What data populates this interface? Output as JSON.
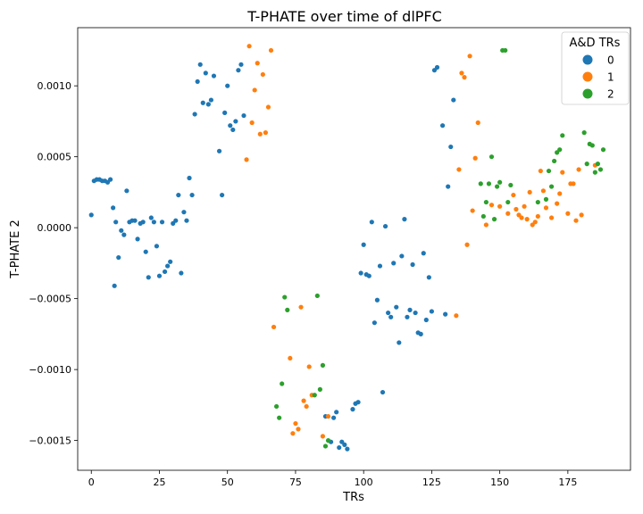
{
  "chart_data": {
    "type": "scatter",
    "title": "T-PHATE over time of dlPFC",
    "xlabel": "TRs",
    "ylabel": "T-PHATE 2",
    "xlim": [
      -5,
      198
    ],
    "ylim": [
      -0.00171,
      0.00141
    ],
    "x_ticks": [
      0,
      25,
      50,
      75,
      100,
      125,
      150,
      175
    ],
    "x_tick_labels": [
      "0",
      "25",
      "50",
      "75",
      "100",
      "125",
      "150",
      "175"
    ],
    "y_ticks": [
      -0.0015,
      -0.001,
      -0.0005,
      0,
      0.0005,
      0.001
    ],
    "y_tick_labels": [
      "−0.0015",
      "−0.0010",
      "−0.0005",
      "0.0000",
      "0.0005",
      "0.0010"
    ],
    "grid": false,
    "legend": {
      "title": "A&D TRs",
      "placement": "top-right"
    },
    "series": [
      {
        "name": "0",
        "color": "#1f77b4",
        "points": [
          [
            0,
            9e-05
          ],
          [
            1,
            0.00033
          ],
          [
            2,
            0.00034
          ],
          [
            3,
            0.00034
          ],
          [
            4,
            0.00033
          ],
          [
            5,
            0.00033
          ],
          [
            6,
            0.00032
          ],
          [
            7,
            0.00034
          ],
          [
            8,
            0.00014
          ],
          [
            8.5,
            -0.00041
          ],
          [
            9,
            4e-05
          ],
          [
            10,
            -0.00021
          ],
          [
            11,
            -2e-05
          ],
          [
            12,
            -5e-05
          ],
          [
            13,
            0.00026
          ],
          [
            14,
            4e-05
          ],
          [
            15,
            5e-05
          ],
          [
            16,
            5e-05
          ],
          [
            17,
            -8e-05
          ],
          [
            18,
            3e-05
          ],
          [
            19,
            4e-05
          ],
          [
            20,
            -0.00017
          ],
          [
            21,
            -0.00035
          ],
          [
            22,
            7e-05
          ],
          [
            23,
            4e-05
          ],
          [
            24,
            -0.00013
          ],
          [
            25,
            -0.00034
          ],
          [
            26,
            4e-05
          ],
          [
            27,
            -0.00031
          ],
          [
            28,
            -0.00027
          ],
          [
            29,
            -0.00024
          ],
          [
            30,
            3e-05
          ],
          [
            31,
            5e-05
          ],
          [
            32,
            0.00023
          ],
          [
            33,
            -0.00032
          ],
          [
            34,
            0.00011
          ],
          [
            35,
            5e-05
          ],
          [
            36,
            0.00035
          ],
          [
            37,
            0.00023
          ],
          [
            38,
            0.0008
          ],
          [
            39,
            0.00103
          ],
          [
            40,
            0.00115
          ],
          [
            41,
            0.00088
          ],
          [
            42,
            0.00109
          ],
          [
            43,
            0.00087
          ],
          [
            44,
            0.0009
          ],
          [
            45,
            0.00107
          ],
          [
            47,
            0.00054
          ],
          [
            48,
            0.00023
          ],
          [
            49,
            0.00081
          ],
          [
            50,
            0.001
          ],
          [
            51,
            0.00072
          ],
          [
            52,
            0.00069
          ],
          [
            53,
            0.00075
          ],
          [
            54,
            0.00111
          ],
          [
            55,
            0.00115
          ],
          [
            56,
            0.00079
          ],
          [
            86,
            -0.00133
          ],
          [
            88,
            -0.00151
          ],
          [
            89,
            -0.00134
          ],
          [
            90,
            -0.0013
          ],
          [
            91,
            -0.00155
          ],
          [
            92,
            -0.00151
          ],
          [
            93,
            -0.00153
          ],
          [
            94,
            -0.00156
          ],
          [
            96,
            -0.00128
          ],
          [
            97,
            -0.00124
          ],
          [
            98,
            -0.00123
          ],
          [
            99,
            -0.00032
          ],
          [
            100,
            -0.00012
          ],
          [
            101,
            -0.00033
          ],
          [
            102,
            -0.00034
          ],
          [
            103,
            4e-05
          ],
          [
            104,
            -0.00067
          ],
          [
            105,
            -0.00051
          ],
          [
            106,
            -0.00027
          ],
          [
            107,
            -0.00116
          ],
          [
            108,
            1e-05
          ],
          [
            109,
            -0.0006
          ],
          [
            110,
            -0.00063
          ],
          [
            111,
            -0.00025
          ],
          [
            112,
            -0.00056
          ],
          [
            113,
            -0.00081
          ],
          [
            114,
            -0.0002
          ],
          [
            115,
            6e-05
          ],
          [
            116,
            -0.00063
          ],
          [
            117,
            -0.00058
          ],
          [
            118,
            -0.00026
          ],
          [
            119,
            -0.0006
          ],
          [
            120,
            -0.00074
          ],
          [
            121,
            -0.00075
          ],
          [
            122,
            -0.00018
          ],
          [
            123,
            -0.00065
          ],
          [
            124,
            -0.00035
          ],
          [
            125,
            -0.00059
          ],
          [
            126,
            0.00111
          ],
          [
            127,
            0.00113
          ],
          [
            129,
            0.00072
          ],
          [
            130,
            -0.00061
          ],
          [
            131,
            0.00029
          ],
          [
            132,
            0.00057
          ],
          [
            133,
            0.0009
          ]
        ]
      },
      {
        "name": "1",
        "color": "#ff7f0e",
        "points": [
          [
            57,
            0.00048
          ],
          [
            58,
            0.00128
          ],
          [
            59,
            0.00074
          ],
          [
            60,
            0.00097
          ],
          [
            61,
            0.00116
          ],
          [
            62,
            0.00066
          ],
          [
            63,
            0.00108
          ],
          [
            64,
            0.00067
          ],
          [
            65,
            0.00085
          ],
          [
            66,
            0.00125
          ],
          [
            67,
            -0.0007
          ],
          [
            73,
            -0.00092
          ],
          [
            74,
            -0.00145
          ],
          [
            75,
            -0.00138
          ],
          [
            76,
            -0.00142
          ],
          [
            77,
            -0.00056
          ],
          [
            78,
            -0.00122
          ],
          [
            79,
            -0.00126
          ],
          [
            80,
            -0.00098
          ],
          [
            81,
            -0.00118
          ],
          [
            85,
            -0.00147
          ],
          [
            87,
            -0.00133
          ],
          [
            134,
            -0.00062
          ],
          [
            135,
            0.00041
          ],
          [
            136,
            0.00109
          ],
          [
            137,
            0.00106
          ],
          [
            138,
            -0.00012
          ],
          [
            139,
            0.00121
          ],
          [
            140,
            0.00012
          ],
          [
            141,
            0.00049
          ],
          [
            142,
            0.00074
          ],
          [
            145,
            2e-05
          ],
          [
            147,
            0.00016
          ],
          [
            150,
            0.00015
          ],
          [
            153,
            0.0001
          ],
          [
            155,
            0.00023
          ],
          [
            156,
            0.00013
          ],
          [
            157,
            9e-05
          ],
          [
            158,
            7e-05
          ],
          [
            159,
            0.00015
          ],
          [
            160,
            6e-05
          ],
          [
            161,
            0.00025
          ],
          [
            162,
            2e-05
          ],
          [
            163,
            4e-05
          ],
          [
            164,
            8e-05
          ],
          [
            165,
            0.0004
          ],
          [
            166,
            0.00026
          ],
          [
            167,
            0.00014
          ],
          [
            169,
            7e-05
          ],
          [
            171,
            0.00017
          ],
          [
            172,
            0.00024
          ],
          [
            173,
            0.00039
          ],
          [
            175,
            0.0001
          ],
          [
            176,
            0.00031
          ],
          [
            177,
            0.00031
          ],
          [
            178,
            5e-05
          ],
          [
            179,
            0.00041
          ],
          [
            180,
            9e-05
          ],
          [
            185,
            0.00044
          ]
        ]
      },
      {
        "name": "2",
        "color": "#2ca02c",
        "points": [
          [
            68,
            -0.00126
          ],
          [
            69,
            -0.00134
          ],
          [
            70,
            -0.0011
          ],
          [
            71,
            -0.00049
          ],
          [
            72,
            -0.00058
          ],
          [
            82,
            -0.00118
          ],
          [
            83,
            -0.00048
          ],
          [
            84,
            -0.00114
          ],
          [
            85,
            -0.00097
          ],
          [
            86,
            -0.00154
          ],
          [
            87,
            -0.0015
          ],
          [
            143,
            0.00031
          ],
          [
            144,
            8e-05
          ],
          [
            145,
            0.00018
          ],
          [
            146,
            0.00031
          ],
          [
            147,
            0.0005
          ],
          [
            148,
            6e-05
          ],
          [
            149,
            0.00029
          ],
          [
            150,
            0.00032
          ],
          [
            151,
            0.00125
          ],
          [
            152,
            0.00125
          ],
          [
            153,
            0.00018
          ],
          [
            154,
            0.0003
          ],
          [
            164,
            0.00018
          ],
          [
            167,
            0.0002
          ],
          [
            168,
            0.0004
          ],
          [
            169,
            0.00029
          ],
          [
            170,
            0.00047
          ],
          [
            171,
            0.00053
          ],
          [
            172,
            0.00055
          ],
          [
            173,
            0.00065
          ],
          [
            181,
            0.00067
          ],
          [
            182,
            0.00045
          ],
          [
            183,
            0.00059
          ],
          [
            184,
            0.00058
          ],
          [
            185,
            0.00039
          ],
          [
            186,
            0.00045
          ],
          [
            187,
            0.00041
          ],
          [
            188,
            0.00055
          ]
        ]
      }
    ]
  }
}
